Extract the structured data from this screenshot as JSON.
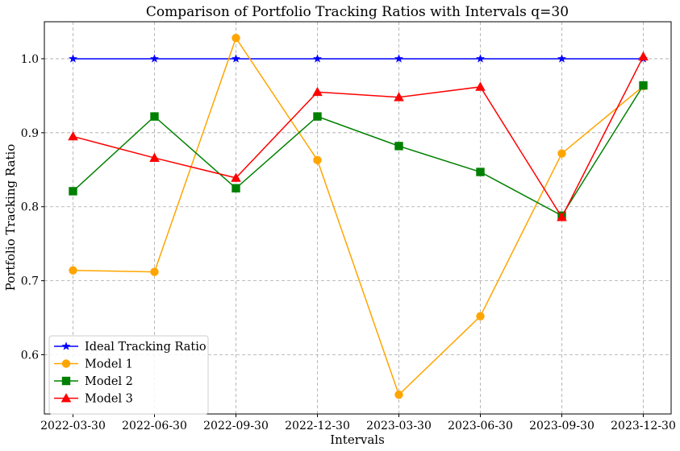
{
  "chart_data": {
    "type": "line",
    "title": "Comparison of Portfolio Tracking Ratios with Intervals q=30",
    "xlabel": "Intervals",
    "ylabel": "Portfolio Tracking Ratio",
    "categories": [
      "2022-03-30",
      "2022-06-30",
      "2022-09-30",
      "2022-12-30",
      "2023-03-30",
      "2023-06-30",
      "2023-09-30",
      "2023-12-30"
    ],
    "ylim": [
      0.52,
      1.05
    ],
    "yticks": [
      "0.6",
      "0.7",
      "0.8",
      "0.9",
      "1.0"
    ],
    "grid": true,
    "legend_position": "lower-left",
    "series": [
      {
        "name": "Ideal Tracking Ratio",
        "color": "#0000ff",
        "marker": "star",
        "values": [
          1.0,
          1.0,
          1.0,
          1.0,
          1.0,
          1.0,
          1.0,
          1.0
        ]
      },
      {
        "name": "Model 1",
        "color": "#ffa500",
        "marker": "circle",
        "values": [
          0.714,
          0.712,
          1.028,
          0.863,
          0.546,
          0.652,
          0.872,
          0.963
        ]
      },
      {
        "name": "Model 2",
        "color": "#008000",
        "marker": "square",
        "values": [
          0.821,
          0.922,
          0.825,
          0.922,
          0.882,
          0.847,
          0.788,
          0.964
        ]
      },
      {
        "name": "Model 3",
        "color": "#ff0000",
        "marker": "triangle",
        "values": [
          0.895,
          0.866,
          0.839,
          0.955,
          0.948,
          0.962,
          0.786,
          1.003
        ]
      }
    ]
  }
}
